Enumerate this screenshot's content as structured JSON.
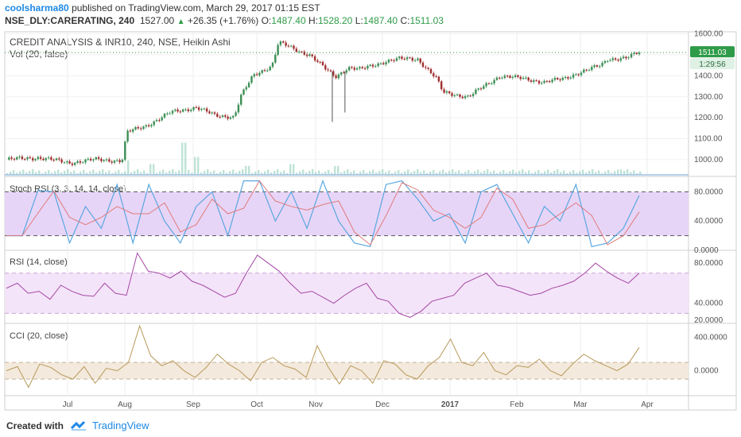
{
  "header": {
    "author": "coolsharma80",
    "published": "published on TradingView.com, March 29, 2017 01:15 EST",
    "symbol_line": "NSE_DLY:CARERATING, 240",
    "last": "1527.00",
    "change": "+26.35 (+1.76%)",
    "o_label": "O:",
    "o": "1487.40",
    "h_label": "H:",
    "h": "1528.20",
    "l_label": "L:",
    "l": "1487.40",
    "c_label": "C:",
    "c": "1511.03"
  },
  "footer": {
    "created_with": "Created with",
    "brand": "TradingView"
  },
  "colors": {
    "up": "#3c8f55",
    "down": "#a0302f",
    "volume": "#a8d8c8",
    "stoch_k": "#5aa7e0",
    "stoch_d": "#e07a7a",
    "stoch_band": "#e7d5f7",
    "rsi_line": "#a447a4",
    "rsi_band": "#f4e4f9",
    "cci_line": "#b8995a",
    "cci_band": "#f3e9dc",
    "price_tag": "#2e9b48"
  },
  "chart_data": [
    {
      "type": "candlestick",
      "title": "CREDIT ANALYSIS & INR10, 240, NSE, Heikin Ashi",
      "subtitle": "Vol (20, false)",
      "ylim": [
        920,
        1610
      ],
      "y_ticks": [
        "1600.00",
        "1500.00",
        "1400.00",
        "1300.00",
        "1200.00",
        "1100.00",
        "1000.00"
      ],
      "price_label": "1511.03",
      "countdown_label": "1:29:56",
      "last_price": 1511.03,
      "x_ticks": [
        "Jul",
        "Aug",
        "Sep",
        "Oct",
        "Nov",
        "Dec",
        "2017",
        "Feb",
        "Mar",
        "Apr"
      ],
      "close_path": [
        [
          0,
          1000
        ],
        [
          0.05,
          1010
        ],
        [
          0.1,
          985
        ],
        [
          0.14,
          1000
        ],
        [
          0.18,
          995
        ],
        [
          0.184,
          1005
        ],
        [
          0.19,
          1130
        ],
        [
          0.22,
          1160
        ],
        [
          0.26,
          1225
        ],
        [
          0.3,
          1250
        ],
        [
          0.33,
          1210
        ],
        [
          0.36,
          1205
        ],
        [
          0.37,
          1300
        ],
        [
          0.39,
          1400
        ],
        [
          0.42,
          1450
        ],
        [
          0.43,
          1560
        ],
        [
          0.46,
          1520
        ],
        [
          0.48,
          1500
        ],
        [
          0.505,
          1430
        ],
        [
          0.52,
          1395
        ],
        [
          0.54,
          1440
        ],
        [
          0.56,
          1430
        ],
        [
          0.6,
          1470
        ],
        [
          0.62,
          1480
        ],
        [
          0.65,
          1480
        ],
        [
          0.68,
          1385
        ],
        [
          0.69,
          1320
        ],
        [
          0.73,
          1300
        ],
        [
          0.76,
          1360
        ],
        [
          0.78,
          1400
        ],
        [
          0.82,
          1385
        ],
        [
          0.85,
          1370
        ],
        [
          0.88,
          1385
        ],
        [
          0.9,
          1410
        ],
        [
          0.94,
          1450
        ],
        [
          0.95,
          1480
        ],
        [
          0.98,
          1485
        ],
        [
          1,
          1511
        ]
      ],
      "volume_spikes": [
        [
          0.19,
          0.4
        ],
        [
          0.23,
          0.3
        ],
        [
          0.28,
          0.9
        ],
        [
          0.3,
          0.5
        ],
        [
          0.38,
          0.25
        ],
        [
          0.45,
          0.3
        ],
        [
          0.52,
          0.25
        ],
        [
          0.97,
          0.15
        ]
      ]
    },
    {
      "type": "line",
      "title": "Stoch RSI (3, 3, 14, 14, close)",
      "ylim": [
        0,
        100
      ],
      "y_ticks": [
        "80.0000",
        "40.0000",
        "0.0000"
      ],
      "bands": [
        20,
        80
      ],
      "series": [
        {
          "values": [
            20,
            20,
            82,
            80,
            10,
            60,
            30,
            90,
            10,
            90,
            40,
            10,
            60,
            80,
            20,
            95,
            95,
            40,
            80,
            30,
            95,
            40,
            10,
            5,
            90,
            95,
            70,
            40,
            50,
            10,
            80,
            90,
            50,
            10,
            60,
            40,
            90,
            5,
            10,
            30,
            75
          ]
        }
      ]
    },
    {
      "type": "line",
      "title": "RSI (14, close)",
      "ylim": [
        20,
        92
      ],
      "y_ticks": [
        "80.0000",
        "40.0000",
        "20.0000"
      ],
      "bands": [
        30,
        70
      ],
      "values": [
        55,
        60,
        50,
        52,
        44,
        58,
        52,
        48,
        47,
        60,
        50,
        48,
        90,
        72,
        70,
        65,
        72,
        62,
        58,
        52,
        46,
        50,
        70,
        88,
        80,
        72,
        60,
        50,
        52,
        46,
        40,
        48,
        55,
        60,
        45,
        42,
        30,
        26,
        32,
        42,
        45,
        48,
        60,
        65,
        70,
        58,
        56,
        52,
        48,
        50,
        55,
        58,
        62,
        70,
        80,
        72,
        65,
        60,
        70
      ]
    },
    {
      "type": "line",
      "title": "CCI (20, close)",
      "ylim": [
        -300,
        560
      ],
      "y_ticks": [
        "400.0000",
        "0.0000"
      ],
      "bands": [
        -100,
        100
      ],
      "values": [
        0,
        50,
        -200,
        80,
        40,
        -50,
        -100,
        50,
        -150,
        30,
        0,
        100,
        540,
        180,
        60,
        120,
        0,
        -80,
        40,
        200,
        80,
        0,
        -120,
        100,
        160,
        60,
        20,
        -80,
        300,
        40,
        -160,
        60,
        0,
        -150,
        120,
        80,
        -50,
        -100,
        60,
        160,
        380,
        100,
        60,
        220,
        0,
        -50,
        60,
        40,
        140,
        0,
        -60,
        80,
        200,
        120,
        60,
        0,
        80,
        280
      ]
    }
  ]
}
